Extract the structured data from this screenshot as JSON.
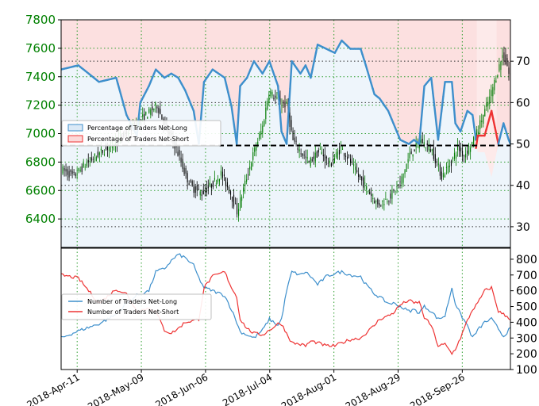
{
  "chart_data": [
    {
      "type": "candlestick_with_ratio",
      "title": "",
      "price_axis": {
        "ylim": [
          6200,
          7800
        ],
        "ticks": [
          6400,
          6600,
          6800,
          7000,
          7200,
          7400,
          7600,
          7800
        ],
        "color": "#008000"
      },
      "ratio_axis": {
        "ylim": [
          25,
          80
        ],
        "ticks": [
          30,
          40,
          50,
          60,
          70
        ]
      },
      "reference_line": 50,
      "legend": {
        "position": "center-left",
        "entries": [
          "Percentage of Traders Net-Long",
          "Percentage of Traders Net-Short"
        ]
      },
      "colors": {
        "long": "#3d8fcc",
        "short": "#ee3333",
        "up_candle": "#007a00",
        "down_candle": "#000000",
        "long_fill": "#dbe9f6",
        "short_fill": "#fbd9d9"
      },
      "x_labels": [
        "2018-Apr-11",
        "2018-May-09",
        "2018-Jun-06",
        "2018-Jul-04",
        "2018-Aug-01",
        "2018-Aug-29",
        "2018-Sep-26"
      ],
      "long_pct_anchors": [
        [
          0,
          68
        ],
        [
          10,
          69
        ],
        [
          22,
          65
        ],
        [
          32,
          66
        ],
        [
          38,
          57
        ],
        [
          44,
          52
        ],
        [
          46,
          60
        ],
        [
          51,
          64
        ],
        [
          55,
          68
        ],
        [
          60,
          66
        ],
        [
          64,
          67
        ],
        [
          68,
          66
        ],
        [
          72,
          63
        ],
        [
          77,
          58
        ],
        [
          80,
          50
        ],
        [
          83,
          65
        ],
        [
          88,
          68
        ],
        [
          95,
          66
        ],
        [
          99,
          59
        ],
        [
          102,
          50
        ],
        [
          104,
          64
        ],
        [
          108,
          66
        ],
        [
          112,
          70
        ],
        [
          117,
          67
        ],
        [
          121,
          70
        ],
        [
          126,
          64
        ],
        [
          128,
          53
        ],
        [
          131,
          50
        ],
        [
          134,
          70
        ],
        [
          139,
          67
        ],
        [
          142,
          69
        ],
        [
          145,
          66
        ],
        [
          149,
          74
        ],
        [
          154,
          73
        ],
        [
          159,
          72
        ],
        [
          163,
          75
        ],
        [
          168,
          73
        ],
        [
          174,
          73
        ],
        [
          177,
          69
        ],
        [
          182,
          62
        ],
        [
          185,
          61
        ],
        [
          190,
          58
        ],
        [
          193,
          55
        ],
        [
          197,
          51
        ],
        [
          202,
          50
        ],
        [
          205,
          51
        ],
        [
          208,
          50
        ],
        [
          211,
          64
        ],
        [
          215,
          66
        ],
        [
          219,
          51
        ],
        [
          223,
          65
        ],
        [
          227,
          65
        ],
        [
          229,
          55
        ],
        [
          232,
          53
        ],
        [
          236,
          58
        ],
        [
          239,
          57
        ],
        [
          242,
          48
        ],
        [
          246,
          48
        ],
        [
          250,
          42
        ],
        [
          254,
          50
        ],
        [
          257,
          55
        ],
        [
          260,
          51
        ],
        [
          261,
          50
        ]
      ],
      "price_anchors": [
        [
          0,
          6750
        ],
        [
          8,
          6700
        ],
        [
          15,
          6780
        ],
        [
          25,
          6870
        ],
        [
          35,
          6950
        ],
        [
          45,
          7050
        ],
        [
          55,
          7150
        ],
        [
          60,
          7200
        ],
        [
          65,
          7050
        ],
        [
          70,
          6950
        ],
        [
          75,
          6800
        ],
        [
          78,
          6700
        ],
        [
          82,
          6620
        ],
        [
          88,
          6580
        ],
        [
          95,
          6650
        ],
        [
          100,
          6720
        ],
        [
          106,
          6580
        ],
        [
          110,
          6450
        ],
        [
          115,
          6650
        ],
        [
          120,
          6850
        ],
        [
          126,
          7050
        ],
        [
          130,
          7300
        ],
        [
          136,
          7220
        ],
        [
          141,
          7200
        ],
        [
          145,
          6950
        ],
        [
          150,
          6870
        ],
        [
          155,
          6800
        ],
        [
          162,
          6880
        ],
        [
          168,
          6780
        ],
        [
          175,
          6900
        ],
        [
          180,
          6820
        ],
        [
          186,
          6700
        ],
        [
          192,
          6600
        ],
        [
          198,
          6500
        ],
        [
          205,
          6550
        ],
        [
          212,
          6650
        ],
        [
          218,
          6850
        ],
        [
          225,
          6950
        ],
        [
          232,
          6880
        ],
        [
          238,
          6700
        ],
        [
          244,
          6800
        ],
        [
          248,
          6900
        ],
        [
          252,
          6850
        ],
        [
          258,
          6950
        ],
        [
          263,
          7100
        ],
        [
          268,
          7250
        ],
        [
          272,
          7400
        ],
        [
          276,
          7550
        ],
        [
          279,
          7480
        ],
        [
          280,
          7420
        ]
      ]
    },
    {
      "type": "line",
      "ylim": [
        100,
        870
      ],
      "ticks": [
        100,
        200,
        300,
        400,
        500,
        600,
        700,
        800
      ],
      "legend": {
        "position": "center-left",
        "entries": [
          "Number of Traders Net-Long",
          "Number of Traders Net-Short"
        ]
      },
      "x_labels": [
        "2018-Apr-11",
        "2018-May-09",
        "2018-Jun-06",
        "2018-Jul-04",
        "2018-Aug-01",
        "2018-Aug-29",
        "2018-Sep-26"
      ],
      "series": [
        {
          "name": "Number of Traders Net-Long",
          "color": "#3d8fcc",
          "anchors": [
            [
              0,
              300
            ],
            [
              10,
              345
            ],
            [
              22,
              390
            ],
            [
              32,
              450
            ],
            [
              38,
              520
            ],
            [
              44,
              570
            ],
            [
              51,
              600
            ],
            [
              55,
              720
            ],
            [
              60,
              740
            ],
            [
              64,
              790
            ],
            [
              68,
              830
            ],
            [
              72,
              810
            ],
            [
              77,
              760
            ],
            [
              80,
              680
            ],
            [
              83,
              620
            ],
            [
              88,
              600
            ],
            [
              95,
              570
            ],
            [
              99,
              480
            ],
            [
              102,
              400
            ],
            [
              104,
              340
            ],
            [
              108,
              320
            ],
            [
              112,
              300
            ],
            [
              117,
              350
            ],
            [
              121,
              420
            ],
            [
              126,
              380
            ],
            [
              128,
              420
            ],
            [
              131,
              600
            ],
            [
              134,
              720
            ],
            [
              139,
              700
            ],
            [
              142,
              720
            ],
            [
              145,
              690
            ],
            [
              149,
              640
            ],
            [
              154,
              690
            ],
            [
              159,
              710
            ],
            [
              163,
              720
            ],
            [
              168,
              700
            ],
            [
              174,
              690
            ],
            [
              177,
              640
            ],
            [
              182,
              580
            ],
            [
              185,
              560
            ],
            [
              190,
              520
            ],
            [
              193,
              520
            ],
            [
              197,
              500
            ],
            [
              202,
              470
            ],
            [
              205,
              480
            ],
            [
              208,
              460
            ],
            [
              211,
              500
            ],
            [
              215,
              470
            ],
            [
              219,
              420
            ],
            [
              223,
              440
            ],
            [
              227,
              620
            ],
            [
              229,
              520
            ],
            [
              232,
              450
            ],
            [
              236,
              380
            ],
            [
              239,
              300
            ],
            [
              242,
              350
            ],
            [
              246,
              400
            ],
            [
              250,
              420
            ],
            [
              254,
              360
            ],
            [
              257,
              310
            ],
            [
              260,
              350
            ],
            [
              261,
              360
            ]
          ]
        },
        {
          "name": "Number of Traders Net-Short",
          "color": "#ee3333",
          "anchors": [
            [
              0,
              700
            ],
            [
              10,
              680
            ],
            [
              22,
              520
            ],
            [
              32,
              610
            ],
            [
              38,
              580
            ],
            [
              44,
              470
            ],
            [
              51,
              490
            ],
            [
              55,
              470
            ],
            [
              60,
              350
            ],
            [
              64,
              330
            ],
            [
              68,
              360
            ],
            [
              72,
              400
            ],
            [
              77,
              410
            ],
            [
              80,
              420
            ],
            [
              83,
              620
            ],
            [
              88,
              690
            ],
            [
              95,
              720
            ],
            [
              99,
              620
            ],
            [
              102,
              560
            ],
            [
              104,
              420
            ],
            [
              108,
              360
            ],
            [
              112,
              330
            ],
            [
              117,
              320
            ],
            [
              121,
              350
            ],
            [
              126,
              390
            ],
            [
              128,
              390
            ],
            [
              131,
              330
            ],
            [
              134,
              270
            ],
            [
              139,
              260
            ],
            [
              142,
              250
            ],
            [
              145,
              280
            ],
            [
              149,
              270
            ],
            [
              154,
              250
            ],
            [
              159,
              250
            ],
            [
              163,
              270
            ],
            [
              168,
              290
            ],
            [
              174,
              300
            ],
            [
              177,
              330
            ],
            [
              182,
              380
            ],
            [
              185,
              420
            ],
            [
              190,
              440
            ],
            [
              193,
              460
            ],
            [
              197,
              510
            ],
            [
              202,
              540
            ],
            [
              205,
              520
            ],
            [
              208,
              530
            ],
            [
              211,
              430
            ],
            [
              215,
              380
            ],
            [
              219,
              250
            ],
            [
              223,
              260
            ],
            [
              227,
              200
            ],
            [
              229,
              230
            ],
            [
              232,
              300
            ],
            [
              236,
              410
            ],
            [
              239,
              480
            ],
            [
              242,
              520
            ],
            [
              246,
              600
            ],
            [
              250,
              620
            ],
            [
              254,
              470
            ],
            [
              257,
              450
            ],
            [
              260,
              430
            ],
            [
              261,
              420
            ]
          ]
        }
      ]
    }
  ]
}
